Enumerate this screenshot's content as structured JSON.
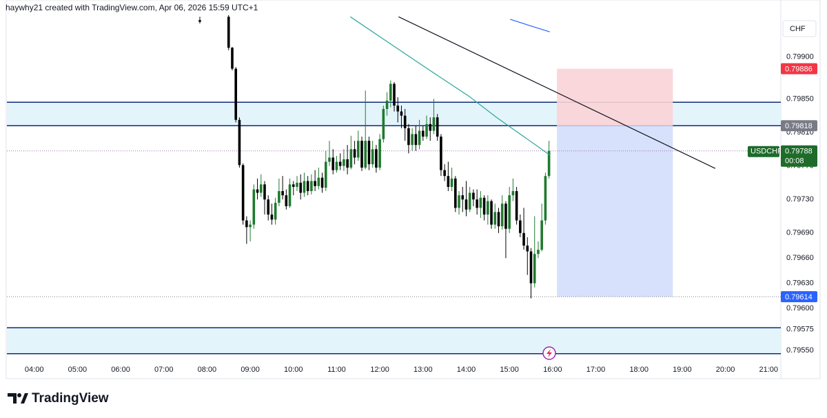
{
  "header": "haywhy21 created with TradingView.com, Apr 06, 2026 15:59 UTC+1",
  "brand": "TradingView",
  "chart_data": {
    "type": "candlestick",
    "currency": "CHF",
    "up_color": "#1f7a2e",
    "down_color": "#000000",
    "candles": {
      "x": [
        470,
        510,
        515,
        520,
        525,
        530,
        535,
        540,
        545,
        550,
        555,
        560,
        565,
        570,
        575,
        580,
        585,
        590,
        595,
        600,
        605,
        610,
        615,
        620,
        625,
        630,
        635,
        640,
        645,
        650,
        655,
        660,
        665,
        670,
        675,
        680,
        685,
        690,
        695,
        700,
        705,
        710,
        715,
        720,
        725,
        730,
        735,
        740,
        745,
        750,
        755,
        760,
        765,
        770,
        775,
        780,
        785,
        790,
        795,
        800,
        805,
        810,
        815,
        820,
        825,
        830,
        835,
        840,
        845,
        850,
        855,
        860,
        865,
        870,
        875,
        880,
        885,
        890,
        895,
        900,
        905,
        910,
        915,
        920,
        925,
        930,
        935,
        940,
        945,
        950,
        955
      ],
      "open": [
        0.79944,
        0.79948,
        0.79911,
        0.79886,
        0.79825,
        0.79771,
        0.79705,
        0.79697,
        0.797,
        0.79742,
        0.79738,
        0.79748,
        0.7973,
        0.79712,
        0.79706,
        0.79726,
        0.7974,
        0.79735,
        0.79722,
        0.79748,
        0.79745,
        0.7975,
        0.79738,
        0.79752,
        0.7974,
        0.79752,
        0.79746,
        0.79756,
        0.79744,
        0.79775,
        0.7978,
        0.79765,
        0.79775,
        0.7977,
        0.79778,
        0.79768,
        0.7979,
        0.7978,
        0.798,
        0.79768,
        0.798,
        0.79772,
        0.7979,
        0.79768,
        0.79802,
        0.79838,
        0.79848,
        0.79868,
        0.79842,
        0.79835,
        0.7983,
        0.79815,
        0.79795,
        0.79808,
        0.79795,
        0.79812,
        0.79805,
        0.7982,
        0.79812,
        0.79828,
        0.79805,
        0.79765,
        0.79758,
        0.79745,
        0.79755,
        0.7972,
        0.79735,
        0.7973,
        0.79718,
        0.79738,
        0.7973,
        0.7972,
        0.79732,
        0.79712,
        0.79728,
        0.797,
        0.79715,
        0.79698,
        0.79725,
        0.79695,
        0.79735,
        0.7974,
        0.79705,
        0.7969,
        0.79675,
        0.79668,
        0.7963,
        0.79665,
        0.7967,
        0.79705,
        0.79758
      ],
      "high": [
        0.79948,
        0.7995,
        0.79912,
        0.79888,
        0.79828,
        0.79773,
        0.7971,
        0.79705,
        0.79748,
        0.79755,
        0.7976,
        0.79752,
        0.79735,
        0.79725,
        0.79732,
        0.79755,
        0.79758,
        0.79742,
        0.79755,
        0.79752,
        0.79758,
        0.7976,
        0.79762,
        0.79758,
        0.7976,
        0.79765,
        0.79768,
        0.79762,
        0.79788,
        0.798,
        0.7979,
        0.79782,
        0.79785,
        0.7979,
        0.79795,
        0.79806,
        0.798,
        0.79812,
        0.79805,
        0.7986,
        0.79805,
        0.798,
        0.79795,
        0.79808,
        0.79842,
        0.79858,
        0.79872,
        0.7987,
        0.79852,
        0.79842,
        0.79838,
        0.7982,
        0.79815,
        0.79818,
        0.79825,
        0.79818,
        0.7983,
        0.79828,
        0.7985,
        0.79832,
        0.79808,
        0.79772,
        0.79775,
        0.79768,
        0.79758,
        0.7974,
        0.79745,
        0.79752,
        0.79745,
        0.79742,
        0.79742,
        0.7974,
        0.79735,
        0.79735,
        0.7973,
        0.79725,
        0.7972,
        0.79735,
        0.79728,
        0.79745,
        0.79755,
        0.79745,
        0.79712,
        0.7972,
        0.79685,
        0.79672,
        0.7971,
        0.7968,
        0.79725,
        0.79762,
        0.798
      ],
      "low": [
        0.7994,
        0.79908,
        0.79884,
        0.79822,
        0.79768,
        0.797,
        0.79677,
        0.7968,
        0.79695,
        0.7973,
        0.79733,
        0.79712,
        0.79705,
        0.797,
        0.797,
        0.79722,
        0.7973,
        0.79718,
        0.7972,
        0.79735,
        0.7974,
        0.7973,
        0.79733,
        0.79735,
        0.79736,
        0.7974,
        0.79742,
        0.79738,
        0.7974,
        0.7977,
        0.7976,
        0.79762,
        0.79765,
        0.79764,
        0.7976,
        0.79766,
        0.79772,
        0.79776,
        0.79764,
        0.79766,
        0.79765,
        0.79768,
        0.79762,
        0.79765,
        0.79798,
        0.7983,
        0.7984,
        0.79835,
        0.79822,
        0.79815,
        0.798,
        0.79785,
        0.79788,
        0.79788,
        0.7979,
        0.798,
        0.79802,
        0.798,
        0.79808,
        0.798,
        0.79758,
        0.79752,
        0.7974,
        0.7974,
        0.79715,
        0.79712,
        0.79715,
        0.7971,
        0.79715,
        0.79722,
        0.79712,
        0.79708,
        0.79705,
        0.797,
        0.79695,
        0.79695,
        0.7969,
        0.79694,
        0.7966,
        0.7969,
        0.79728,
        0.797,
        0.79685,
        0.7967,
        0.7964,
        0.79612,
        0.79625,
        0.7966,
        0.79668,
        0.797,
        0.79755
      ],
      "close": [
        0.79942,
        0.79911,
        0.79886,
        0.79825,
        0.79771,
        0.79705,
        0.79697,
        0.797,
        0.79742,
        0.79738,
        0.79748,
        0.7973,
        0.79712,
        0.79706,
        0.79726,
        0.7974,
        0.79735,
        0.79722,
        0.79748,
        0.79745,
        0.7975,
        0.79738,
        0.79752,
        0.7974,
        0.79752,
        0.79746,
        0.79756,
        0.79744,
        0.79775,
        0.7978,
        0.79765,
        0.79775,
        0.7977,
        0.79778,
        0.79768,
        0.7979,
        0.7978,
        0.798,
        0.79768,
        0.798,
        0.79772,
        0.7979,
        0.79768,
        0.79802,
        0.79838,
        0.79848,
        0.79868,
        0.79842,
        0.79835,
        0.7983,
        0.79815,
        0.79795,
        0.79808,
        0.79795,
        0.79812,
        0.79805,
        0.7982,
        0.79812,
        0.79828,
        0.79805,
        0.79765,
        0.79758,
        0.79745,
        0.79755,
        0.7972,
        0.79735,
        0.7973,
        0.79718,
        0.79738,
        0.7973,
        0.7972,
        0.79732,
        0.79712,
        0.79728,
        0.797,
        0.79715,
        0.79698,
        0.79725,
        0.79695,
        0.79735,
        0.7974,
        0.79705,
        0.7969,
        0.79675,
        0.79668,
        0.7963,
        0.79665,
        0.7967,
        0.79705,
        0.79758,
        0.79788
      ]
    },
    "lines": [
      {
        "color": "#26a69a",
        "x": [
          679,
          729,
          786,
          844,
          882,
          920,
          956
        ],
        "values": [
          0.79948,
          0.79919,
          0.79886,
          0.79853,
          0.79828,
          0.79805,
          0.79783
        ]
      },
      {
        "color": "#2962ff",
        "x": [
          901,
          930,
          956
        ],
        "values": [
          0.79945,
          0.79937,
          0.7993
        ]
      },
      {
        "color": "#131722",
        "x": [
          746,
          1186
        ],
        "values": [
          0.79948,
          0.79767
        ]
      }
    ],
    "zones": [
      {
        "low": 0.79818,
        "high": 0.79846,
        "color": "#e3f4fb",
        "edge": "#0d2a7a"
      },
      {
        "low": 0.79546,
        "high": 0.79577,
        "color": "#e3f4fb",
        "edge": "#0d2a7a"
      }
    ],
    "position": {
      "x": [
        966,
        1127
      ],
      "entry": 0.79818,
      "stop": 0.79886,
      "target": 0.79614,
      "stop_color": "#f9d3d6",
      "target_color": "#d3defb"
    },
    "price_labels": [
      {
        "value": 0.79886,
        "color": "#f23645"
      },
      {
        "value": 0.79818,
        "color": "#787b86"
      },
      {
        "value": 0.79614,
        "color": "#2962ff"
      }
    ],
    "last": {
      "symbol": "USDCHF",
      "value": 0.79788,
      "countdown": "00:08",
      "color": "#1e6b2a"
    },
    "xlim": [
      202,
      1277
    ],
    "xticks": [
      {
        "value": 240,
        "label": "04:00"
      },
      {
        "value": 300,
        "label": "05:00"
      },
      {
        "value": 360,
        "label": "06:00"
      },
      {
        "value": 420,
        "label": "07:00"
      },
      {
        "value": 480,
        "label": "08:00"
      },
      {
        "value": 540,
        "label": "09:00"
      },
      {
        "value": 600,
        "label": "10:00"
      },
      {
        "value": 660,
        "label": "11:00"
      },
      {
        "value": 720,
        "label": "12:00"
      },
      {
        "value": 780,
        "label": "13:00"
      },
      {
        "value": 840,
        "label": "14:00"
      },
      {
        "value": 900,
        "label": "15:00"
      },
      {
        "value": 960,
        "label": "16:00"
      },
      {
        "value": 1020,
        "label": "17:00"
      },
      {
        "value": 1080,
        "label": "18:00"
      },
      {
        "value": 1140,
        "label": "19:00"
      },
      {
        "value": 1200,
        "label": "20:00"
      },
      {
        "value": 1260,
        "label": "21:00"
      }
    ],
    "ylim": [
      0.79517,
      0.79968
    ],
    "yticks": [
      {
        "value": 0.799,
        "label": "0.79900"
      },
      {
        "value": 0.7985,
        "label": "0.79850"
      },
      {
        "value": 0.7981,
        "label": "0.79810"
      },
      {
        "value": 0.7977,
        "label": "0.79770"
      },
      {
        "value": 0.7973,
        "label": "0.79730"
      },
      {
        "value": 0.7969,
        "label": "0.79690"
      },
      {
        "value": 0.7966,
        "label": "0.79660"
      },
      {
        "value": 0.7963,
        "label": "0.79630"
      },
      {
        "value": 0.796,
        "label": "0.79600"
      },
      {
        "value": 0.79575,
        "label": "0.79575"
      },
      {
        "value": 0.7955,
        "label": "0.79550"
      }
    ]
  }
}
